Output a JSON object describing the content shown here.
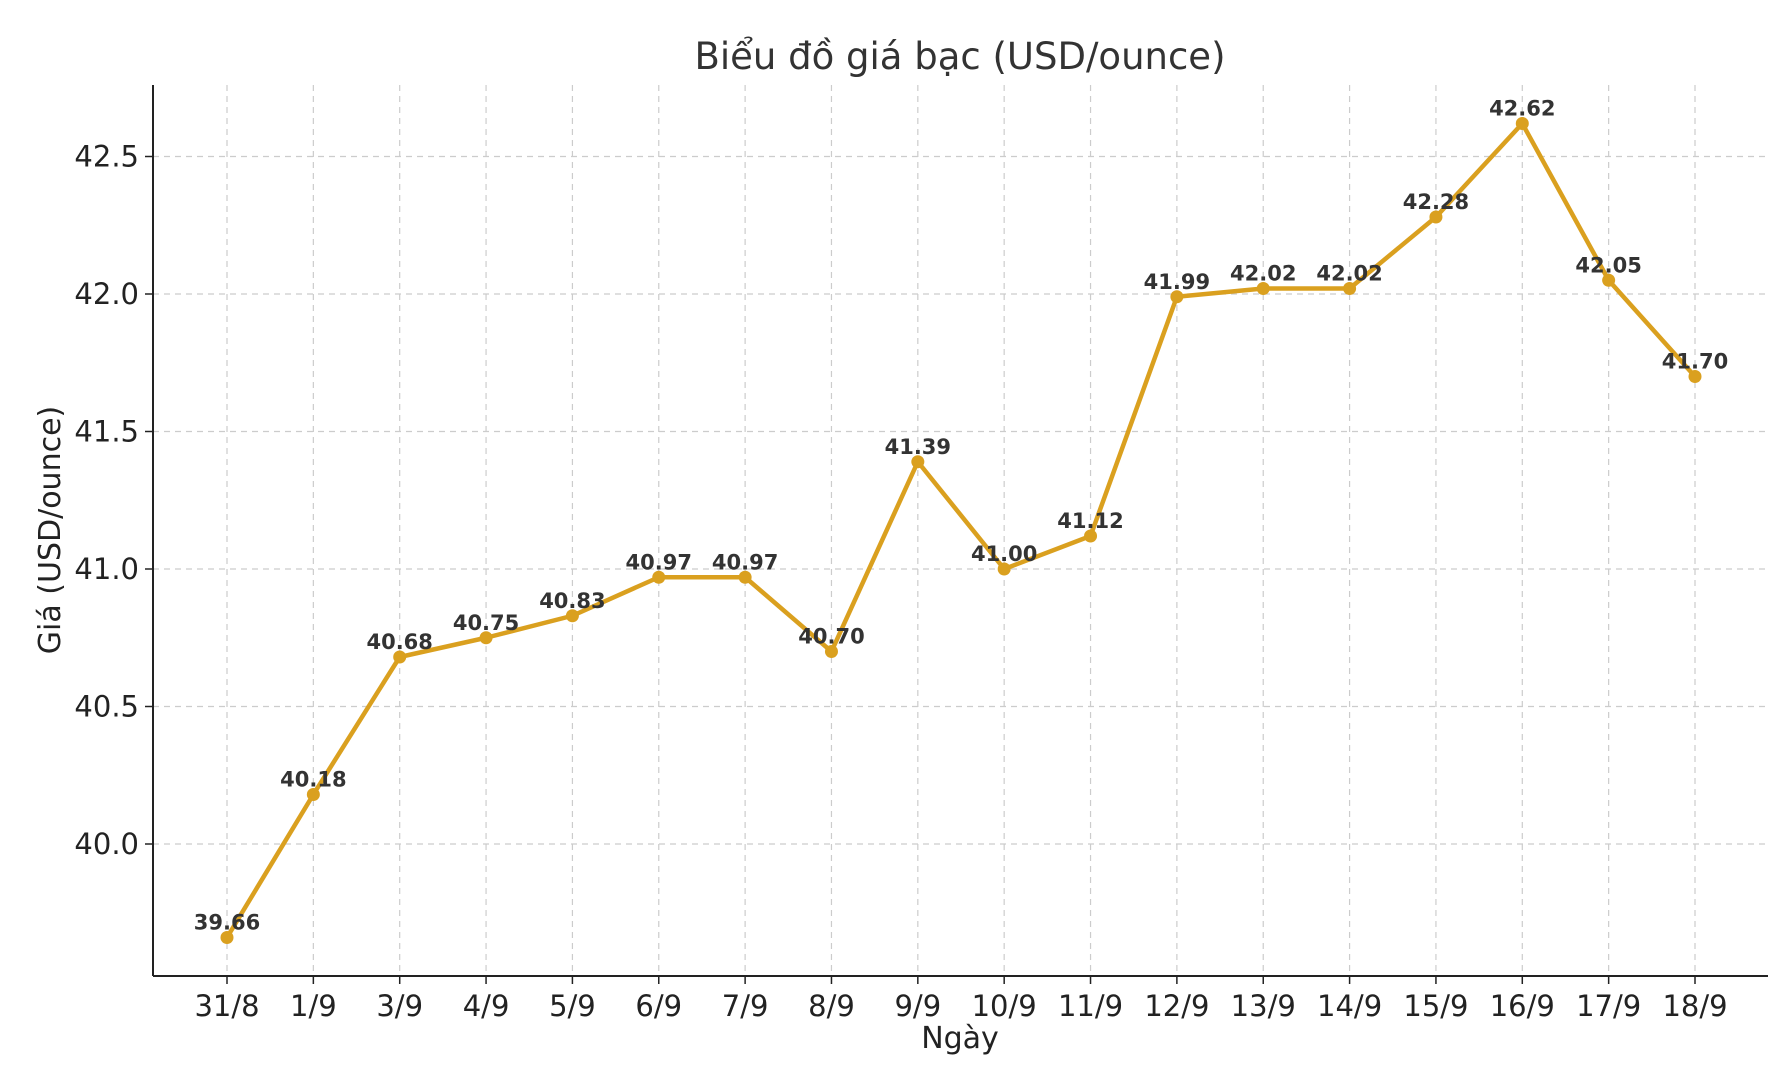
{
  "chart_data": {
    "type": "line",
    "title": "Biểu đồ giá bạc (USD/ounce)",
    "xlabel": "Ngày",
    "ylabel": "Giá (USD/ounce)",
    "categories": [
      "31/8",
      "1/9",
      "3/9",
      "4/9",
      "5/9",
      "6/9",
      "7/9",
      "8/9",
      "9/9",
      "10/9",
      "11/9",
      "12/9",
      "13/9",
      "14/9",
      "15/9",
      "16/9",
      "17/9",
      "18/9"
    ],
    "series": [
      {
        "values": [
          39.66,
          40.18,
          40.68,
          40.75,
          40.83,
          40.97,
          40.97,
          40.7,
          41.39,
          41.0,
          41.12,
          41.99,
          42.02,
          42.02,
          42.28,
          42.62,
          42.05,
          41.7
        ],
        "labels": [
          "39.66",
          "40.18",
          "40.68",
          "40.75",
          "40.83",
          "40.97",
          "40.97",
          "40.70",
          "41.39",
          "41.00",
          "41.12",
          "41.99",
          "42.02",
          "42.02",
          "42.28",
          "42.62",
          "42.05",
          "41.70"
        ],
        "color": "#DAA01F",
        "marker": "circle"
      }
    ],
    "yticks": [
      "40.0",
      "40.5",
      "41.0",
      "41.5",
      "42.0",
      "42.5"
    ],
    "ytick_values": [
      40.0,
      40.5,
      41.0,
      41.5,
      42.0,
      42.5
    ],
    "ylim": [
      39.52,
      42.76
    ],
    "grid": true,
    "legend": "none"
  }
}
